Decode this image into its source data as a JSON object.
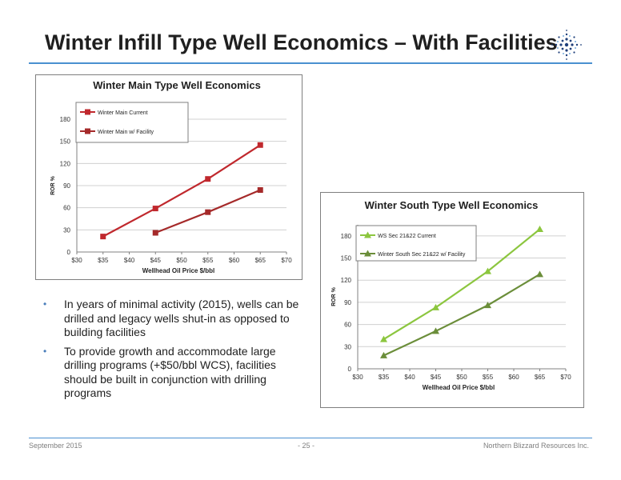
{
  "slide": {
    "title": "Winter Infill Type Well Economics – With Facilities",
    "bullets": [
      "In years of minimal activity (2015), wells can be drilled and legacy wells shut-in as opposed to building facilities",
      "To provide growth and accommodate large drilling programs (+$50/bbl WCS), facilities should be built in conjunction with drilling programs"
    ],
    "bullet_symbol": "•",
    "footer": {
      "left": "September 2015",
      "center": "- 25 -",
      "right": "Northern Blizzard Resources Inc."
    },
    "accent_color": "#4a90d0"
  },
  "chart_data": [
    {
      "type": "line",
      "title": "Winter Main Type Well Economics",
      "xlabel": "Wellhead Oil Price $/bbl",
      "ylabel": "ROR %",
      "x_ticks": [
        30,
        35,
        40,
        45,
        50,
        55,
        60,
        65,
        70
      ],
      "x_tick_labels": [
        "$30",
        "$35",
        "$40",
        "$45",
        "$50",
        "$55",
        "$60",
        "$65",
        "$70"
      ],
      "xlim": [
        30,
        70
      ],
      "y_ticks": [
        0,
        30,
        60,
        90,
        120,
        150,
        180
      ],
      "y_tick_labels": [
        "0",
        "30",
        "60",
        "90",
        "120",
        "150",
        "180"
      ],
      "ylim": [
        0,
        180
      ],
      "grid": true,
      "legend": "top-left",
      "marker": "square",
      "series": [
        {
          "name": "Winter Main Current",
          "color": "#c0282d",
          "x": [
            35,
            45,
            55,
            65
          ],
          "y": [
            21,
            59,
            99,
            145
          ]
        },
        {
          "name": "Winter Main w/ Facility",
          "color": "#a52a2a",
          "x": [
            45,
            55,
            65
          ],
          "y": [
            26,
            54,
            84
          ]
        }
      ]
    },
    {
      "type": "line",
      "title": "Winter South Type Well Economics",
      "xlabel": "Wellhead Oil Price $/bbl",
      "ylabel": "ROR %",
      "x_ticks": [
        30,
        35,
        40,
        45,
        50,
        55,
        60,
        65,
        70
      ],
      "x_tick_labels": [
        "$30",
        "$35",
        "$40",
        "$45",
        "$50",
        "$55",
        "$60",
        "$65",
        "$70"
      ],
      "xlim": [
        30,
        70
      ],
      "y_ticks": [
        0,
        30,
        60,
        90,
        120,
        150,
        180
      ],
      "y_tick_labels": [
        "0",
        "30",
        "60",
        "90",
        "120",
        "150",
        "180"
      ],
      "ylim": [
        0,
        195
      ],
      "grid": true,
      "legend": "top-left",
      "marker": "triangle",
      "series": [
        {
          "name": "WS Sec 21&22 Current",
          "color": "#8cc63f",
          "x": [
            35,
            45,
            55,
            65
          ],
          "y": [
            40,
            83,
            132,
            189
          ]
        },
        {
          "name": "Winter South Sec 21&22 w/ Facility",
          "color": "#6b8e3a",
          "x": [
            35,
            45,
            55,
            65
          ],
          "y": [
            18,
            51,
            86,
            128
          ]
        }
      ]
    }
  ]
}
